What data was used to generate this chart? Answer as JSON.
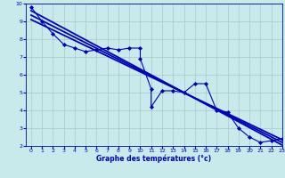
{
  "xlabel": "Graphe des températures (°c)",
  "bg_color": "#c8eaea",
  "plot_bg": "#c8eaea",
  "grid_color": "#a8c8c8",
  "line_color": "#0000bb",
  "x_data": [
    0,
    1,
    2,
    3,
    4,
    5,
    6,
    7,
    8,
    9,
    10,
    10,
    11,
    11,
    12,
    13,
    14,
    15,
    16,
    17,
    18,
    19,
    20,
    21,
    22,
    23
  ],
  "y_main": [
    9.8,
    9.0,
    8.3,
    7.7,
    7.5,
    7.3,
    7.4,
    7.5,
    7.4,
    7.5,
    7.5,
    6.9,
    5.2,
    4.2,
    5.1,
    5.1,
    5.0,
    5.5,
    5.5,
    4.0,
    3.9,
    3.0,
    2.5,
    2.2,
    2.3,
    2.4
  ],
  "reg_lines": [
    {
      "x": [
        0,
        23
      ],
      "y": [
        9.6,
        2.05
      ]
    },
    {
      "x": [
        0,
        23
      ],
      "y": [
        9.35,
        2.2
      ]
    },
    {
      "x": [
        0,
        23
      ],
      "y": [
        9.1,
        2.35
      ]
    }
  ],
  "xlim": [
    -0.5,
    23
  ],
  "ylim": [
    2,
    10
  ],
  "xticks": [
    0,
    1,
    2,
    3,
    4,
    5,
    6,
    7,
    8,
    9,
    10,
    11,
    12,
    13,
    14,
    15,
    16,
    17,
    18,
    19,
    20,
    21,
    22,
    23
  ],
  "yticks": [
    2,
    3,
    4,
    5,
    6,
    7,
    8,
    9,
    10
  ]
}
